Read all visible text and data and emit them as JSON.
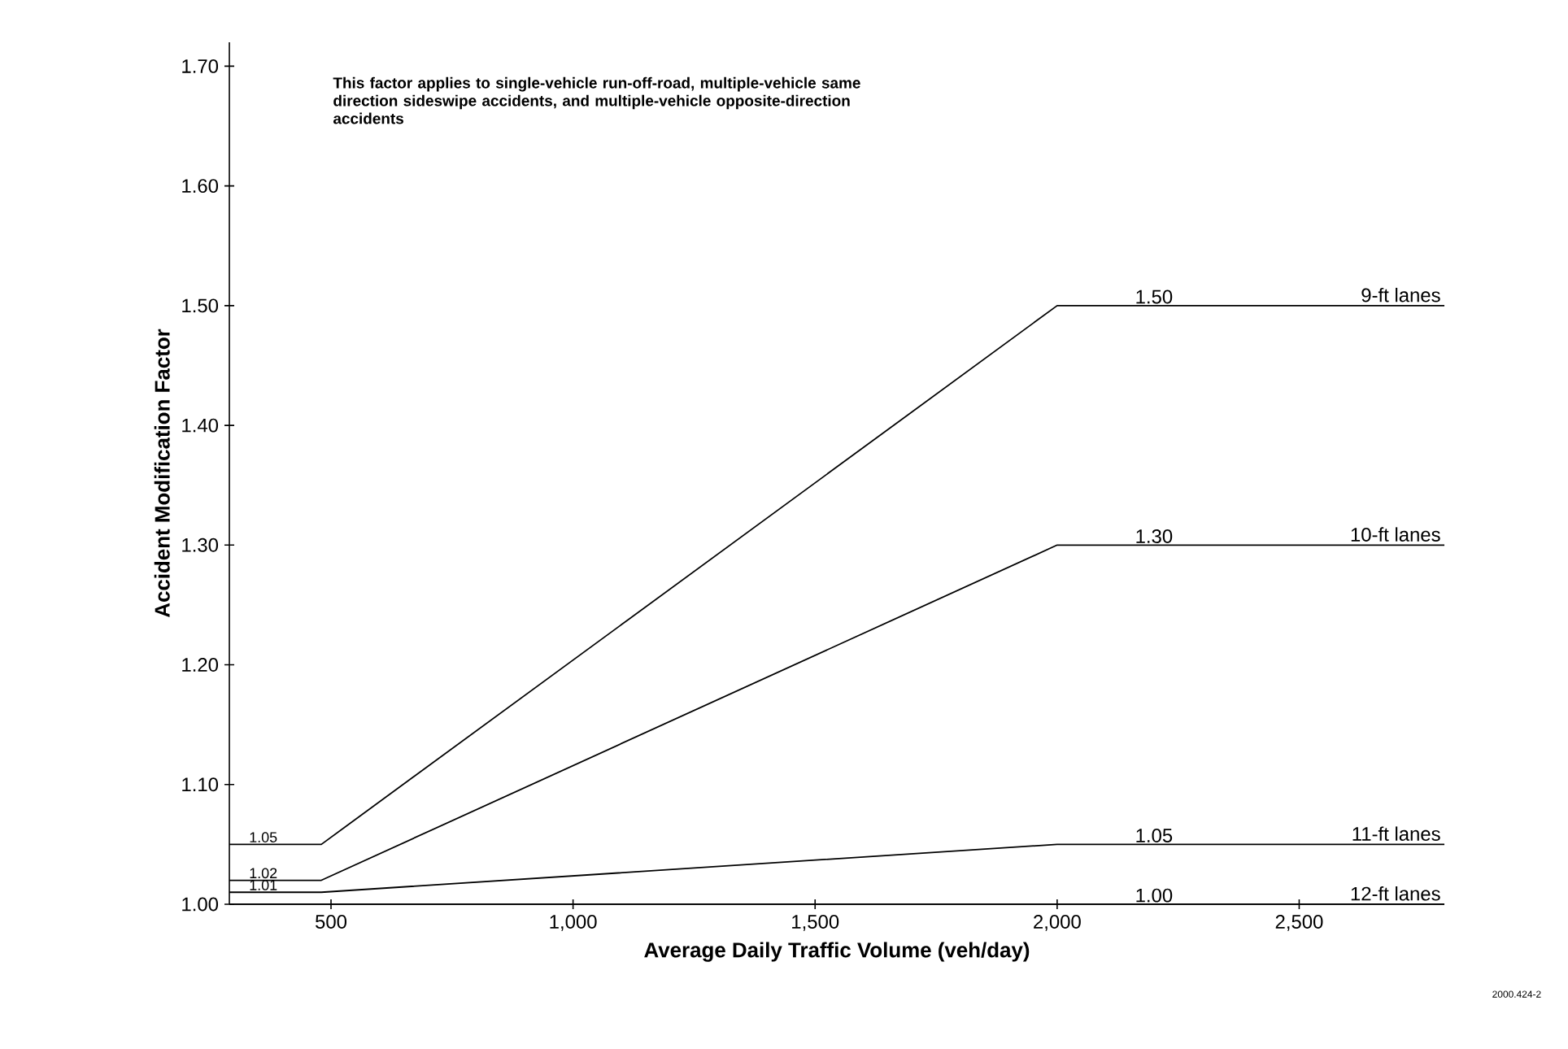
{
  "chart_data": {
    "type": "line",
    "xlabel": "Average Daily Traffic Volume (veh/day)",
    "ylabel": "Accident Modification Factor",
    "xlim": [
      290,
      2800
    ],
    "ylim": [
      1.0,
      1.72
    ],
    "xticks": [
      500,
      {
        "value": 1000,
        "label": "1,000"
      },
      {
        "value": 1500,
        "label": "1,500"
      },
      {
        "value": 2000,
        "label": "2,000"
      },
      {
        "value": 2500,
        "label": "2,500"
      }
    ],
    "yticks": [
      {
        "value": 1.0,
        "label": "1.00"
      },
      {
        "value": 1.1,
        "label": "1.10"
      },
      {
        "value": 1.2,
        "label": "1.20"
      },
      {
        "value": 1.3,
        "label": "1.30"
      },
      {
        "value": 1.4,
        "label": "1.40"
      },
      {
        "value": 1.5,
        "label": "1.50"
      },
      {
        "value": 1.6,
        "label": "1.60"
      },
      {
        "value": 1.7,
        "label": "1.70"
      }
    ],
    "x": [
      290,
      360,
      480,
      2000,
      2200,
      2800
    ],
    "series": [
      {
        "name": "9-ft lanes",
        "color": "#000000",
        "values": [
          1.05,
          1.05,
          1.05,
          1.5,
          1.5,
          1.5
        ],
        "value_labels": [
          null,
          "1.05",
          null,
          null,
          "1.50",
          null
        ]
      },
      {
        "name": "10-ft lanes",
        "color": "#000000",
        "values": [
          1.02,
          1.02,
          1.02,
          1.3,
          1.3,
          1.3
        ],
        "value_labels": [
          null,
          "1.02",
          null,
          null,
          "1.30",
          null
        ]
      },
      {
        "name": "11-ft lanes",
        "color": "#000000",
        "values": [
          1.01,
          1.01,
          1.01,
          1.05,
          1.05,
          1.05
        ],
        "value_labels": [
          null,
          "1.01",
          null,
          null,
          "1.05",
          null
        ]
      },
      {
        "name": "12-ft lanes",
        "color": "#000000",
        "values": [
          1.0,
          1.0,
          1.0,
          1.0,
          1.0,
          1.0
        ],
        "value_labels": [
          null,
          null,
          null,
          null,
          "1.00",
          null
        ]
      }
    ],
    "annotations": [
      "This factor applies to single-vehicle run-off-road, multiple-vehicle same direction sideswipe accidents, and multiple-vehicle opposite-direction accidents",
      "2000.424-2"
    ]
  }
}
